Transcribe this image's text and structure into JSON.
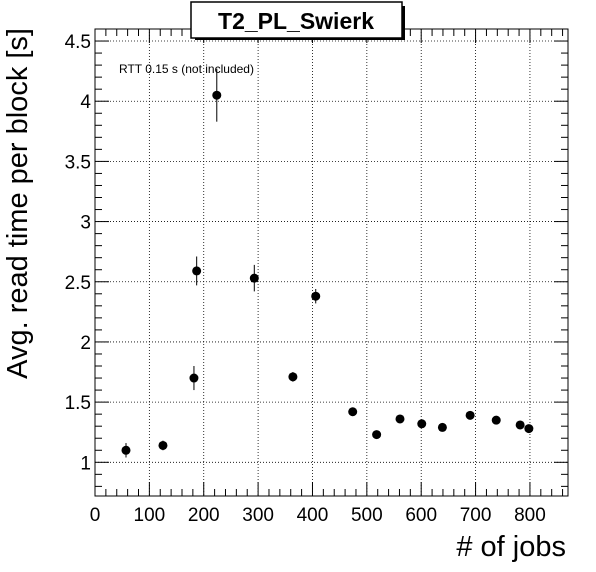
{
  "chart_data": {
    "type": "scatter",
    "title": "T2_PL_Swierk",
    "xlabel": "# of jobs",
    "ylabel": "Avg. read time per block [s]",
    "xlim": [
      0,
      870
    ],
    "ylim": [
      0.72,
      4.6
    ],
    "xticks": [
      0,
      100,
      200,
      300,
      400,
      500,
      600,
      700,
      800
    ],
    "yticks": [
      1,
      1.5,
      2,
      2.5,
      3,
      3.5,
      4,
      4.5
    ],
    "grid": "horizontal",
    "annotation": "RTT 0.15 s (not included)",
    "points": [
      {
        "x": 57,
        "y": 1.1,
        "err": 0.06
      },
      {
        "x": 125,
        "y": 1.14,
        "err": 0.04
      },
      {
        "x": 182,
        "y": 1.7,
        "err": 0.1
      },
      {
        "x": 187,
        "y": 2.59,
        "err": 0.12
      },
      {
        "x": 224,
        "y": 4.05,
        "err": 0.22
      },
      {
        "x": 293,
        "y": 2.53,
        "err": 0.11
      },
      {
        "x": 364,
        "y": 1.71,
        "err": 0.04
      },
      {
        "x": 406,
        "y": 2.38,
        "err": 0.06
      },
      {
        "x": 474,
        "y": 1.42,
        "err": 0.02
      },
      {
        "x": 518,
        "y": 1.23,
        "err": 0.02
      },
      {
        "x": 561,
        "y": 1.36,
        "err": 0.02
      },
      {
        "x": 601,
        "y": 1.32,
        "err": 0.02
      },
      {
        "x": 639,
        "y": 1.29,
        "err": 0.02
      },
      {
        "x": 690,
        "y": 1.39,
        "err": 0.02
      },
      {
        "x": 738,
        "y": 1.35,
        "err": 0.02
      },
      {
        "x": 782,
        "y": 1.31,
        "err": 0.02
      },
      {
        "x": 798,
        "y": 1.28,
        "err": 0.02
      }
    ]
  }
}
